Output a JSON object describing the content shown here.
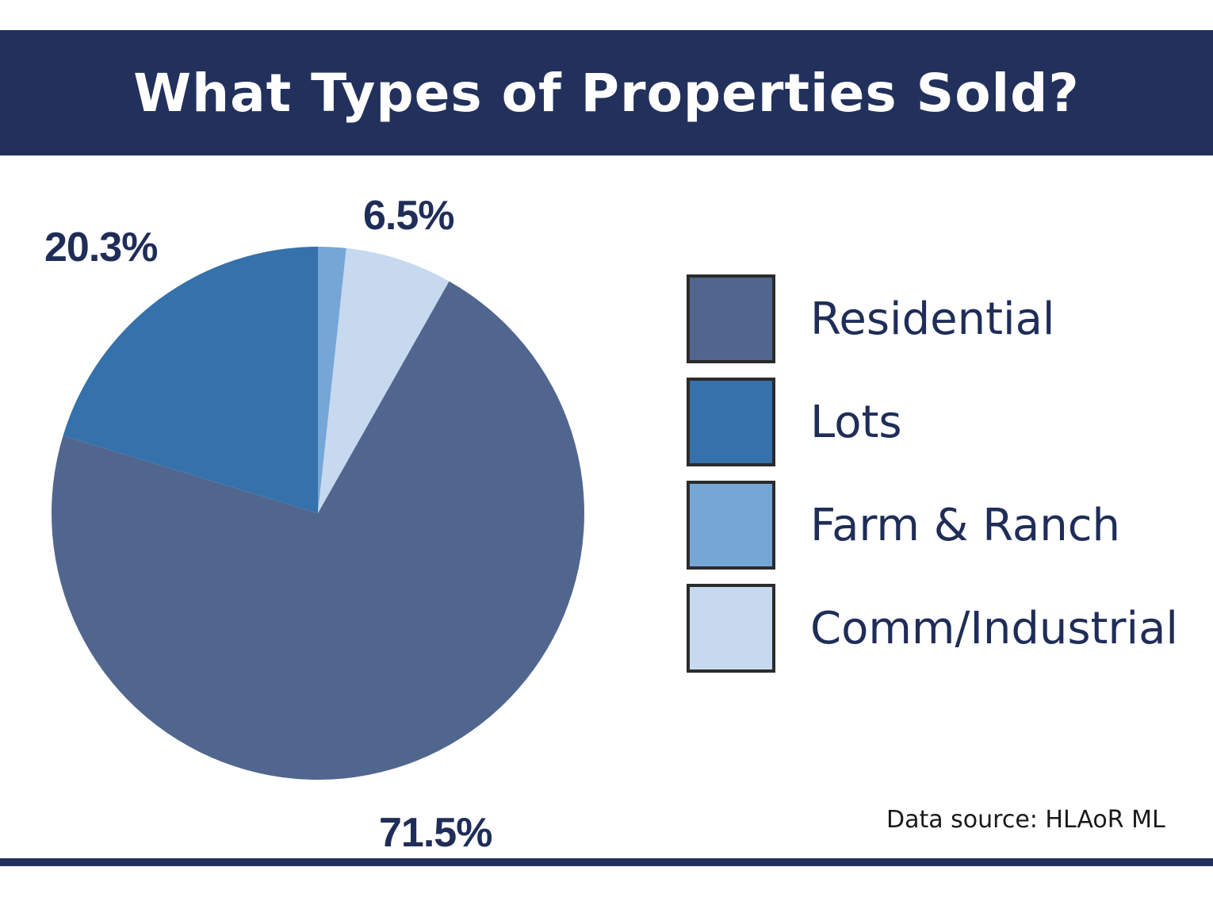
{
  "title": "What Types of Properties Sold?",
  "chart_data": {
    "type": "pie",
    "title": "What Types of Properties Sold?",
    "categories": [
      "Residential",
      "Lots",
      "Farm & Ranch",
      "Comm/Industrial"
    ],
    "values": [
      71.5,
      20.3,
      1.7,
      6.5
    ],
    "unit": "%",
    "colors": [
      "#51668f",
      "#3571ab",
      "#75a6d6",
      "#c6d9ef"
    ],
    "data_labels": [
      "71.5%",
      "20.3%",
      "6.5%"
    ],
    "legend_position": "right"
  },
  "labels": {
    "residential": "71.5%",
    "lots": "20.3%",
    "comm": "6.5%"
  },
  "legend": [
    {
      "label": "Residential",
      "color": "#51668f"
    },
    {
      "label": "Lots",
      "color": "#3571ab"
    },
    {
      "label": "Farm & Ranch",
      "color": "#75a6d6"
    },
    {
      "label": "Comm/Industrial",
      "color": "#c6d9ef"
    }
  ],
  "footer": {
    "source": "Data source: HLAoR ML"
  },
  "colors": {
    "banner": "#22315c",
    "text": "#1f2d58"
  }
}
